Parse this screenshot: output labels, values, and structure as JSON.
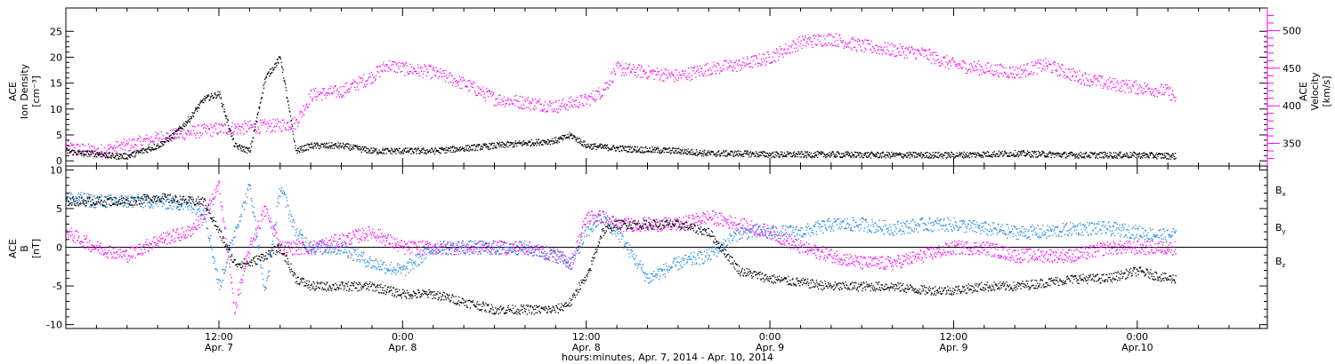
{
  "colors": {
    "black": "#000000",
    "magenta": "#ff00ff",
    "blue": "#1e88e5"
  },
  "xaxis": {
    "title": "hours:minutes, Apr.  7, 2014 - Apr. 10, 2014",
    "ticks": [
      {
        "hour": 12,
        "time": "12:00",
        "date": "Apr. 7"
      },
      {
        "hour": 24,
        "time": "0:00",
        "date": "Apr. 8"
      },
      {
        "hour": 36,
        "time": "12:00",
        "date": "Apr. 8"
      },
      {
        "hour": 48,
        "time": "0:00",
        "date": "Apr. 9"
      },
      {
        "hour": 60,
        "time": "12:00",
        "date": "Apr. 9"
      },
      {
        "hour": 72,
        "time": "0:00",
        "date": "Apr.10"
      }
    ]
  },
  "panel1": {
    "ylabel_left": [
      "ACE",
      "Ion Density",
      "[cm⁻³]"
    ],
    "ylabel_right": [
      "ACE",
      "Velocity",
      "[km/s]"
    ],
    "left_ticks": [
      "0",
      "5",
      "10",
      "15",
      "20",
      "25"
    ],
    "right_ticks": [
      "350",
      "400",
      "450",
      "500"
    ]
  },
  "panel2": {
    "ylabel": [
      "ACE",
      "B",
      "[nT]"
    ],
    "ticks": [
      "-10",
      "-5",
      "0",
      "5",
      "10"
    ],
    "legend": [
      {
        "main": "B",
        "sub": "x",
        "color": "#000000"
      },
      {
        "main": "B",
        "sub": "y",
        "color": "#1e88e5"
      },
      {
        "main": "B",
        "sub": "z",
        "color": "#ff00ff"
      }
    ]
  },
  "chart_data": [
    {
      "type": "scatter",
      "title": "",
      "xlabel": "hours:minutes, Apr.  7, 2014 - Apr. 10, 2014",
      "x_unit": "hours since 2014-04-07 00:00",
      "xlim": [
        2,
        80.5
      ],
      "y_left": {
        "label": "ACE Ion Density [cm⁻³]",
        "ylim": [
          -1,
          29.5
        ]
      },
      "y_right": {
        "label": "ACE Velocity [km/s]",
        "ylim": [
          320,
          530
        ]
      },
      "series": [
        {
          "name": "Ion Density",
          "axis": "left",
          "color": "#000000",
          "x": [
            2,
            3,
            4,
            5,
            6,
            7,
            8,
            9,
            10,
            11,
            12,
            13,
            14,
            15,
            16,
            17,
            18,
            20,
            22,
            24,
            26,
            28,
            30,
            32,
            34,
            35,
            36,
            38,
            40,
            42,
            44,
            46,
            48,
            52,
            56,
            60,
            64,
            68,
            72,
            74.5
          ],
          "y": [
            2,
            1.5,
            1.5,
            1,
            1,
            2,
            3,
            5,
            8,
            12,
            13,
            3,
            2,
            16,
            20,
            2,
            3,
            3,
            2,
            2,
            2,
            2.5,
            3,
            3.5,
            4,
            5,
            3,
            2.5,
            2.2,
            2,
            1.5,
            1.5,
            1.3,
            1.3,
            1.2,
            1.2,
            1.5,
            1.2,
            1.2,
            1
          ]
        },
        {
          "name": "Velocity",
          "axis": "right",
          "color": "#ff00ff",
          "x": [
            2,
            4,
            6,
            8,
            10,
            12,
            14,
            16,
            17,
            18,
            20,
            22,
            23,
            24,
            26,
            28,
            30,
            32,
            34,
            36,
            37,
            38,
            40,
            42,
            44,
            46,
            48,
            50,
            52,
            54,
            56,
            58,
            60,
            62,
            64,
            66,
            68,
            70,
            72,
            74,
            74.5
          ],
          "y": [
            345,
            340,
            348,
            358,
            365,
            370,
            372,
            375,
            378,
            415,
            420,
            440,
            455,
            450,
            445,
            430,
            410,
            405,
            400,
            408,
            420,
            450,
            445,
            440,
            450,
            455,
            465,
            485,
            490,
            480,
            475,
            470,
            455,
            450,
            445,
            455,
            440,
            430,
            425,
            420,
            410
          ]
        }
      ]
    },
    {
      "type": "scatter",
      "title": "",
      "xlabel": "hours:minutes, Apr.  7, 2014 - Apr. 10, 2014",
      "x_unit": "hours since 2014-04-07 00:00",
      "xlim": [
        2,
        80.5
      ],
      "ylabel": "ACE B [nT]",
      "ylim": [
        -10.5,
        10.5
      ],
      "series": [
        {
          "name": "Bx",
          "color": "#000000",
          "x": [
            2,
            4,
            6,
            8,
            10,
            11,
            12,
            13,
            14,
            15,
            16,
            17,
            18,
            20,
            22,
            24,
            26,
            28,
            30,
            32,
            34,
            35,
            35.5,
            36,
            37,
            38,
            40,
            42,
            44,
            46,
            48,
            50,
            52,
            54,
            56,
            58,
            60,
            62,
            64,
            66,
            68,
            70,
            72,
            74,
            74.5
          ],
          "y": [
            6,
            6,
            6,
            6.5,
            6,
            6,
            2,
            -2,
            -2,
            -1,
            0,
            -4,
            -5,
            -5,
            -5,
            -6,
            -6,
            -7,
            -8,
            -8,
            -8,
            -7,
            -5,
            -4,
            2,
            3,
            3,
            3,
            2,
            -3,
            -4,
            -4.5,
            -5,
            -5,
            -5,
            -5.5,
            -5.5,
            -5,
            -5,
            -4.5,
            -4,
            -4,
            -3,
            -4,
            -4
          ]
        },
        {
          "name": "By",
          "color": "#1e88e5",
          "x": [
            2,
            4,
            6,
            8,
            10,
            11,
            12,
            13,
            14,
            15,
            16,
            17,
            18,
            20,
            22,
            24,
            26,
            28,
            30,
            32,
            34,
            35,
            36,
            37,
            38,
            40,
            42,
            44,
            46,
            48,
            50,
            52,
            54,
            56,
            58,
            60,
            62,
            64,
            66,
            68,
            70,
            72,
            74,
            74.5
          ],
          "y": [
            6.5,
            6,
            6,
            6,
            5.5,
            5,
            -5,
            2,
            8,
            -6,
            8,
            2,
            0,
            0,
            -2,
            -3,
            0,
            0,
            0,
            0,
            -1,
            -2,
            2,
            4,
            2,
            -4,
            -2,
            -1,
            2,
            2,
            2,
            3,
            3,
            2.5,
            3,
            3,
            2.5,
            2,
            2,
            2.5,
            2.5,
            2,
            1.5,
            2
          ]
        },
        {
          "name": "Bz",
          "color": "#ff00ff",
          "x": [
            2,
            4,
            6,
            8,
            10,
            11,
            12,
            13,
            14,
            15,
            16,
            17,
            18,
            20,
            22,
            24,
            26,
            28,
            30,
            32,
            34,
            35,
            36,
            37,
            38,
            40,
            42,
            44,
            46,
            48,
            50,
            52,
            54,
            56,
            58,
            60,
            62,
            64,
            66,
            68,
            70,
            72,
            74,
            74.5
          ],
          "y": [
            2,
            0,
            -1,
            1,
            2,
            4,
            8,
            -8,
            0,
            5,
            0,
            0,
            0,
            1,
            2,
            0,
            0,
            0,
            0,
            0,
            -1,
            -2,
            4,
            4,
            3,
            3,
            3,
            4,
            3,
            2,
            0,
            -1,
            -2,
            -2,
            -1,
            0,
            0,
            -1,
            -1,
            -1,
            0,
            0,
            0,
            0
          ]
        }
      ]
    }
  ]
}
